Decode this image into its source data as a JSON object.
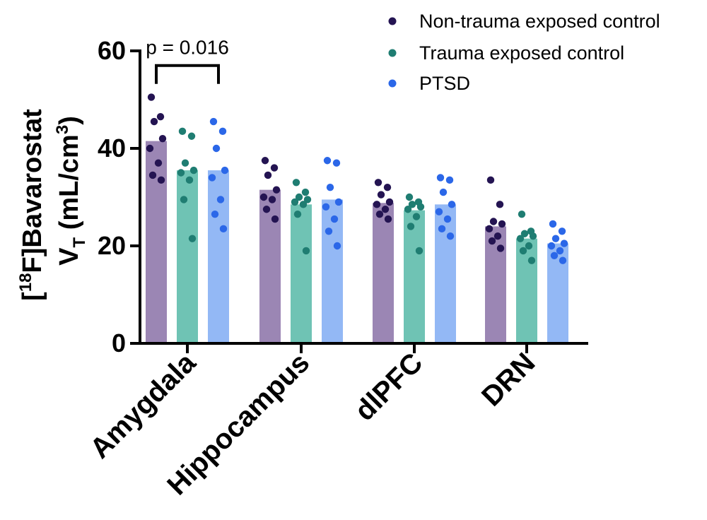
{
  "chart_data": {
    "type": "bar",
    "ylabel_line1": {
      "pre": "[",
      "sup": "18",
      "post": "F]Bavarostat"
    },
    "ylabel_line2": {
      "v": "V",
      "sub": "T",
      "mid": " (mL/cm",
      "sup": "3",
      "post": ")"
    },
    "ylim": [
      0,
      60
    ],
    "yticks": [
      "0",
      "20",
      "40",
      "60"
    ],
    "categories": [
      "Amygdala",
      "Hippocampus",
      "dlPFC",
      "DRN"
    ],
    "legend_position": "top-right",
    "grid": false,
    "series": [
      {
        "name": "Non-trauma exposed control",
        "bar_color": "#9b86b4",
        "dot_color": "#241452",
        "values": [
          41.5,
          31.5,
          28.8,
          24.0
        ],
        "points": [
          [
            50.5,
            46.5,
            45.5,
            42.0,
            40.0,
            37.0,
            34.5,
            33.5
          ],
          [
            37.5,
            36.0,
            34.5,
            31.5,
            30.0,
            29.5,
            27.5,
            25.5
          ],
          [
            33.0,
            32.0,
            30.5,
            29.0,
            28.5,
            27.5,
            26.5,
            25.5
          ],
          [
            33.5,
            28.5,
            25.0,
            24.5,
            23.5,
            22.0,
            21.0,
            19.5
          ]
        ]
      },
      {
        "name": "Trauma exposed control",
        "bar_color": "#6fc3b4",
        "dot_color": "#1f7d72",
        "values": [
          35.5,
          28.5,
          27.3,
          21.5
        ],
        "points": [
          [
            43.5,
            42.5,
            37.0,
            35.5,
            35.0,
            33.5,
            29.5,
            21.5
          ],
          [
            33.0,
            31.0,
            30.0,
            29.5,
            29.0,
            28.5,
            26.5,
            19.0
          ],
          [
            30.0,
            29.0,
            28.5,
            28.0,
            27.5,
            26.0,
            24.0,
            19.0
          ],
          [
            26.5,
            23.0,
            22.5,
            22.0,
            21.5,
            20.0,
            19.0,
            17.0
          ]
        ]
      },
      {
        "name": "PTSD",
        "bar_color": "#93b8f5",
        "dot_color": "#2b67e8",
        "values": [
          35.5,
          29.5,
          28.5,
          20.5
        ],
        "points": [
          [
            45.5,
            43.5,
            40.0,
            35.5,
            34.0,
            29.5,
            26.5,
            23.5
          ],
          [
            37.5,
            37.0,
            32.0,
            29.0,
            28.0,
            25.5,
            23.0,
            20.0
          ],
          [
            34.0,
            33.5,
            31.0,
            28.5,
            27.0,
            25.5,
            23.5,
            22.0
          ],
          [
            24.5,
            23.0,
            21.5,
            20.5,
            20.0,
            19.0,
            18.0,
            17.0
          ]
        ]
      }
    ],
    "annotation": {
      "text": "p = 0.016",
      "category": "Amygdala",
      "from_series": 0,
      "to_series": 2,
      "y": 57
    }
  }
}
